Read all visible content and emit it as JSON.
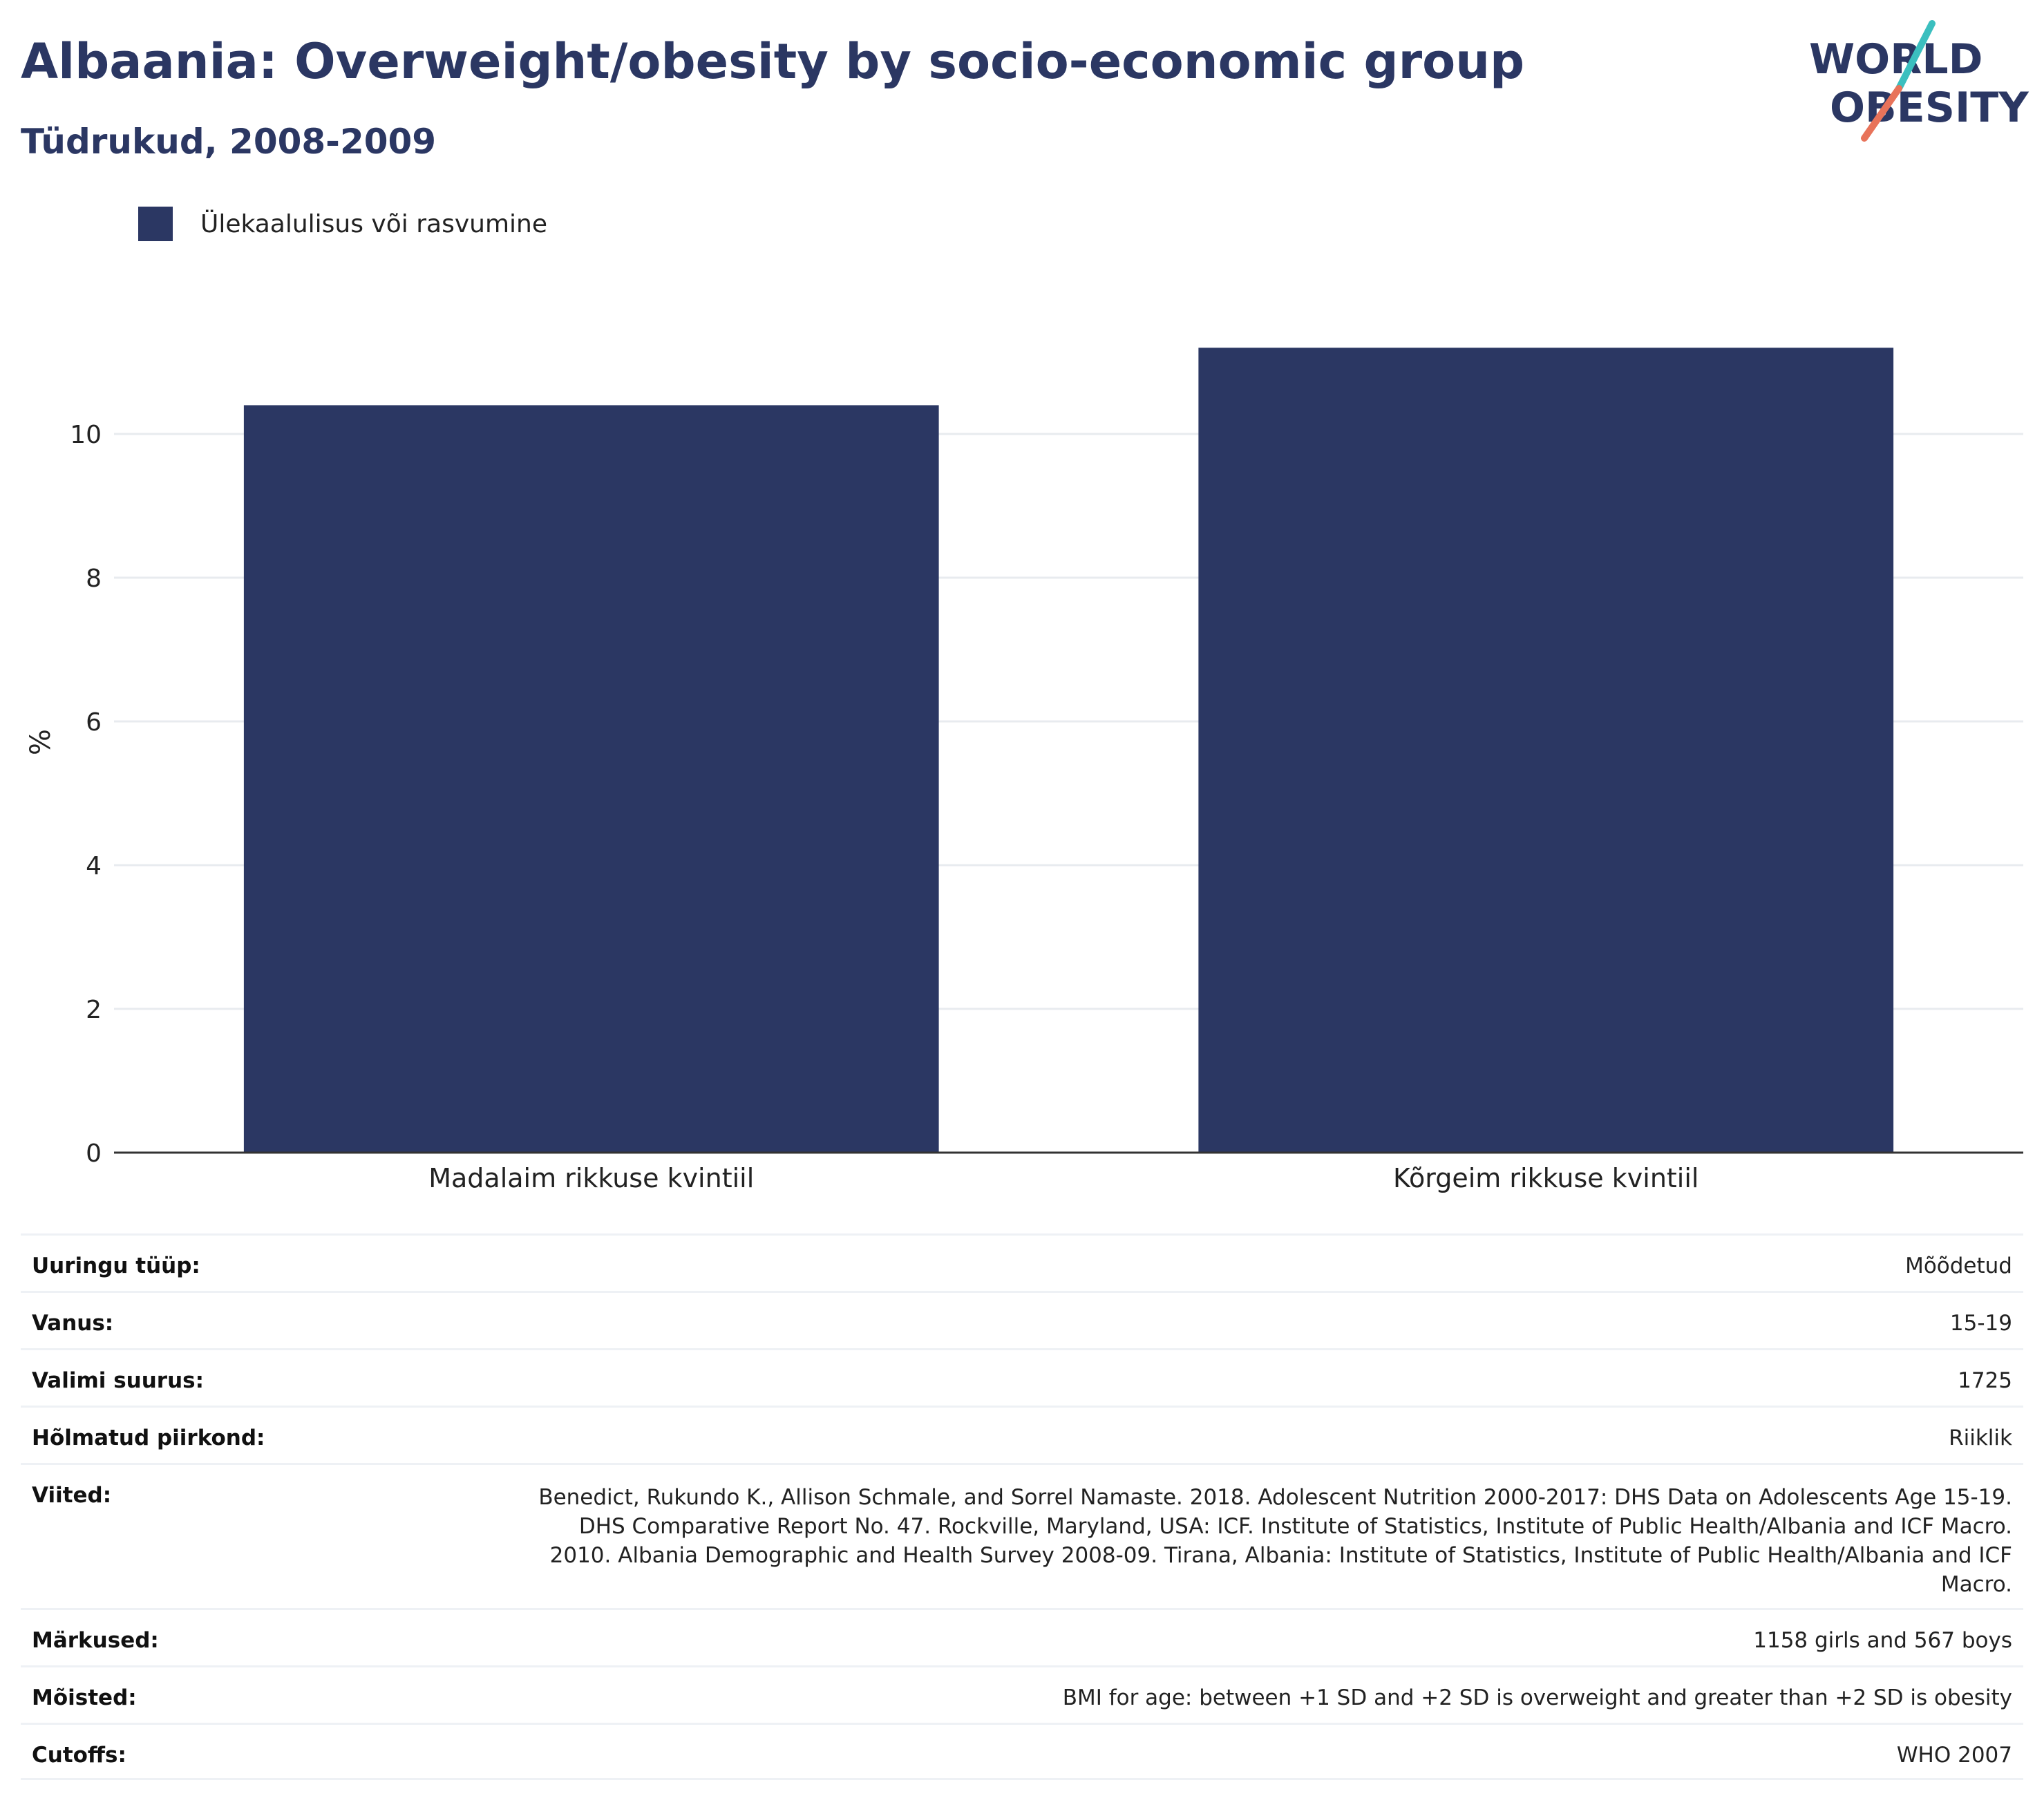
{
  "header": {
    "title": "Albaania: Overweight/obesity by socio-economic group",
    "subtitle": "Tüdrukud, 2008-2009"
  },
  "logo": {
    "line1": "WORLD",
    "line2": "OBESITY"
  },
  "legend": {
    "label": "Ülekaalulisus või rasvumine"
  },
  "colors": {
    "bar": "#2b3763",
    "text": "#2b3763",
    "logo_teal": "#3bbfbf",
    "logo_coral": "#e8735a"
  },
  "chart_data": {
    "type": "bar",
    "categories": [
      "Madalaim rikkuse kvintiil",
      "Kõrgeim rikkuse kvintiil"
    ],
    "series": [
      {
        "name": "Ülekaalulisus või rasvumine",
        "values": [
          10.4,
          11.2
        ]
      }
    ],
    "ylabel": "%",
    "ylim": [
      0,
      12
    ],
    "yticks": [
      0,
      2,
      4,
      6,
      8,
      10
    ],
    "grid": true,
    "legend_position": "top-left"
  },
  "info": [
    {
      "key": "Uuringu tüüp:",
      "value": "Mõõdetud"
    },
    {
      "key": "Vanus:",
      "value": "15-19"
    },
    {
      "key": "Valimi suurus:",
      "value": "1725"
    },
    {
      "key": "Hõlmatud piirkond:",
      "value": "Riiklik"
    },
    {
      "key": "Viited:",
      "value": "Benedict, Rukundo K., Allison Schmale, and Sorrel Namaste. 2018. Adolescent Nutrition 2000-2017: DHS Data on Adolescents Age 15-19. DHS Comparative Report No. 47. Rockville, Maryland, USA: ICF. Institute of Statistics, Institute of Public Health/Albania and ICF Macro. 2010. Albania Demographic and Health Survey 2008-09. Tirana, Albania: Institute of Statistics, Institute of Public Health/Albania and ICF Macro."
    },
    {
      "key": "Märkused:",
      "value": "1158 girls and 567 boys"
    },
    {
      "key": "Mõisted:",
      "value": "BMI for age: between +1 SD and +2 SD is overweight and greater than +2 SD is obesity"
    },
    {
      "key": "Cutoffs:",
      "value": "WHO 2007"
    }
  ]
}
